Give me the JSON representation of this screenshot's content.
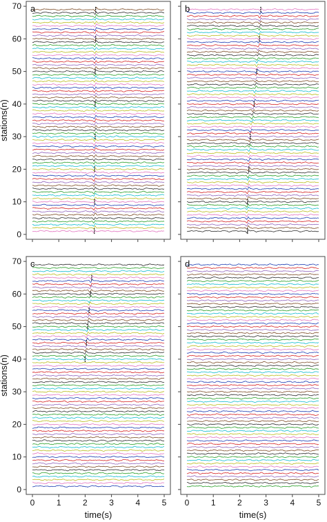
{
  "chart_data": [
    {
      "panel": "a",
      "type": "line",
      "ylabel": "stations(n)",
      "xlabel": "",
      "xlim": [
        0,
        5
      ],
      "ylim": [
        0,
        70
      ],
      "yticks": [
        0,
        10,
        20,
        30,
        40,
        50,
        60,
        70
      ],
      "xticks": [
        0,
        1,
        2,
        3,
        4,
        5
      ],
      "show_x_tick_labels": false,
      "show_y_tick_labels": true,
      "n_traces": 69,
      "trace_amplitude": 0.35,
      "arrival_picks": [
        {
          "station": 69,
          "t": 2.4
        },
        {
          "station": 60,
          "t": 2.4
        },
        {
          "station": 50,
          "t": 2.38
        },
        {
          "station": 40,
          "t": 2.38
        },
        {
          "station": 30,
          "t": 2.38
        },
        {
          "station": 20,
          "t": 2.36
        },
        {
          "station": 10,
          "t": 2.36
        },
        {
          "station": 1,
          "t": 2.35
        }
      ]
    },
    {
      "panel": "b",
      "type": "line",
      "ylabel": "",
      "xlabel": "",
      "xlim": [
        0,
        5
      ],
      "ylim": [
        0,
        70
      ],
      "yticks": [
        0,
        10,
        20,
        30,
        40,
        50,
        60,
        70
      ],
      "xticks": [
        0,
        1,
        2,
        3,
        4,
        5
      ],
      "show_x_tick_labels": false,
      "show_y_tick_labels": false,
      "n_traces": 69,
      "trace_amplitude": 0.35,
      "arrival_picks": [
        {
          "station": 1,
          "t": 2.3
        },
        {
          "station": 10,
          "t": 2.3
        },
        {
          "station": 20,
          "t": 2.35
        },
        {
          "station": 30,
          "t": 2.4
        },
        {
          "station": 40,
          "t": 2.55
        },
        {
          "station": 50,
          "t": 2.65
        },
        {
          "station": 60,
          "t": 2.75
        },
        {
          "station": 69,
          "t": 2.8
        }
      ]
    },
    {
      "panel": "c",
      "type": "line",
      "ylabel": "stations(n)",
      "xlabel": "time(s)",
      "xlim": [
        0,
        5
      ],
      "ylim": [
        0,
        70
      ],
      "yticks": [
        0,
        10,
        20,
        30,
        40,
        50,
        60,
        70
      ],
      "xticks": [
        0,
        1,
        2,
        3,
        4,
        5
      ],
      "show_x_tick_labels": true,
      "show_y_tick_labels": true,
      "n_traces": 69,
      "trace_amplitude": 0.35,
      "arrival_picks": [
        {
          "station": 40,
          "t": 2.0
        },
        {
          "station": 45,
          "t": 2.05
        },
        {
          "station": 50,
          "t": 2.1
        },
        {
          "station": 55,
          "t": 2.15
        },
        {
          "station": 60,
          "t": 2.2
        },
        {
          "station": 65,
          "t": 2.25
        }
      ]
    },
    {
      "panel": "d",
      "type": "line",
      "ylabel": "",
      "xlabel": "time(s)",
      "xlim": [
        0,
        5
      ],
      "ylim": [
        0,
        70
      ],
      "yticks": [
        0,
        10,
        20,
        30,
        40,
        50,
        60,
        70
      ],
      "xticks": [
        0,
        1,
        2,
        3,
        4,
        5
      ],
      "show_x_tick_labels": true,
      "show_y_tick_labels": false,
      "n_traces": 69,
      "trace_amplitude": 0.35,
      "arrival_picks": []
    }
  ],
  "trace_colors": [
    "#1f3fb4",
    "#2ca02c",
    "#d62728",
    "#17becf",
    "#9467bd",
    "#bcbd22",
    "#7f4f2a",
    "#e377c2",
    "#333333"
  ]
}
